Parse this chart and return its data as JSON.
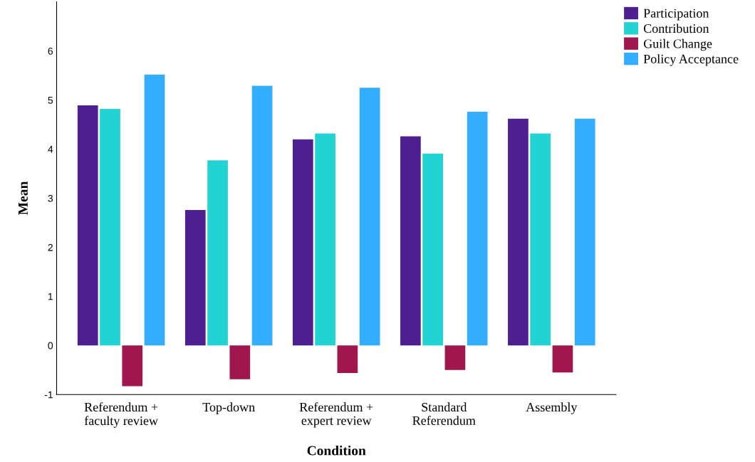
{
  "chart_data": {
    "type": "bar",
    "xlabel": "Condition",
    "ylabel": "Mean",
    "categories": [
      "Referendum +\nfaculty review",
      "Top-down",
      "Referendum +\nexpert review",
      "Standard\nReferendum",
      "Assembly"
    ],
    "series": [
      {
        "name": "Participation",
        "color": "#4e1f91",
        "values": [
          4.89,
          2.76,
          4.2,
          4.26,
          4.62
        ]
      },
      {
        "name": "Contribution",
        "color": "#22d3d3",
        "values": [
          4.82,
          3.77,
          4.32,
          3.91,
          4.32
        ]
      },
      {
        "name": "Guilt Change",
        "color": "#a0174d",
        "values": [
          -0.83,
          -0.69,
          -0.56,
          -0.5,
          -0.55
        ]
      },
      {
        "name": "Policy Acceptance",
        "color": "#33adff",
        "values": [
          5.52,
          5.29,
          5.25,
          4.76,
          4.62
        ]
      }
    ],
    "ylim": [
      -1,
      7
    ],
    "yticks": [
      -1,
      0,
      1,
      2,
      3,
      4,
      5,
      6
    ],
    "grid": false,
    "legend": "top right"
  }
}
